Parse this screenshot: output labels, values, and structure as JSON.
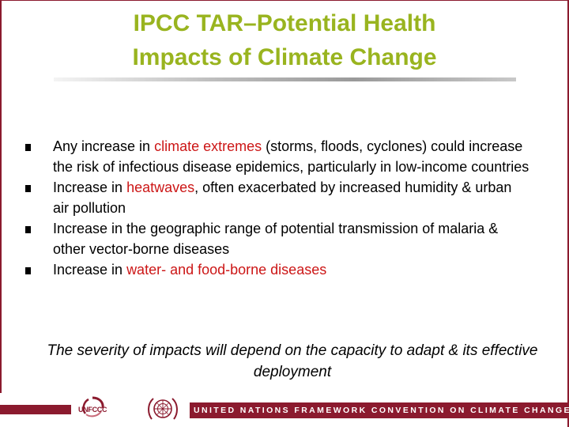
{
  "slide": {
    "title_line1": "IPCC TAR–Potential Health",
    "title_line2": "Impacts of Climate Change",
    "bullets": [
      {
        "before": "Any increase in ",
        "highlight": "climate extremes",
        "after": " (storms, floods, cyclones) could increase the risk of infectious disease epidemics, particularly in low-income countries"
      },
      {
        "before": "Increase in ",
        "highlight": "heatwaves",
        "after": ", often exacerbated by increased humidity & urban air pollution"
      },
      {
        "before": "Increase in the geographic range of potential transmission of malaria & other vector-borne diseases",
        "highlight": "",
        "after": ""
      },
      {
        "before": "Increase in ",
        "highlight": "water- and food-borne diseases",
        "after": ""
      }
    ],
    "closing_note": "The severity of impacts will depend on the capacity to adapt & its effective deployment"
  },
  "footer": {
    "logo_text": "UNFCCC",
    "banner_text": "UNITED NATIONS FRAMEWORK CONVENTION ON CLIMATE CHANGE",
    "colors": {
      "band": "#8b1a2e",
      "title": "#99b41f",
      "highlight": "#cc1616"
    }
  }
}
